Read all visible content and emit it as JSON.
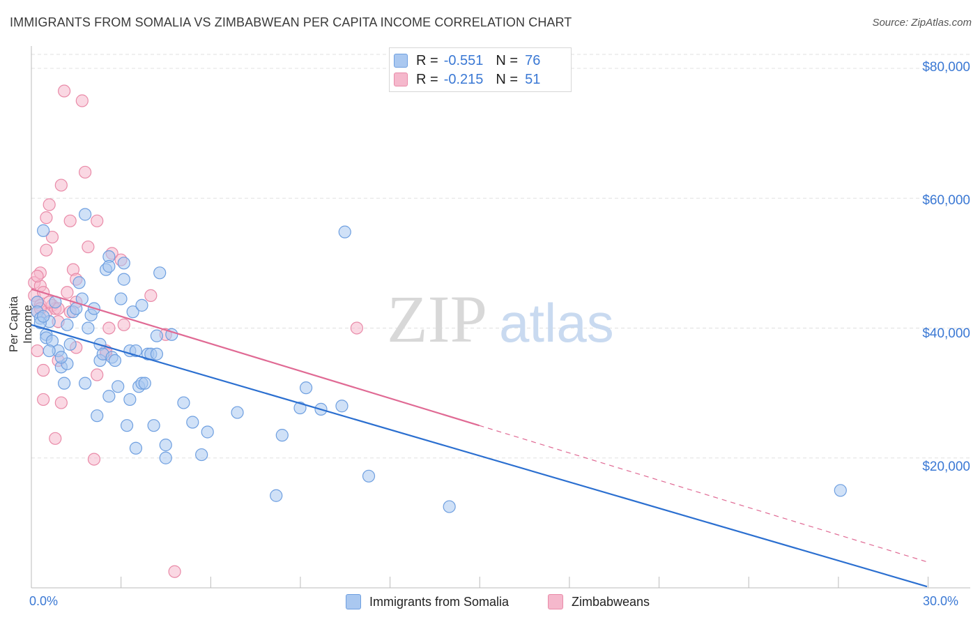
{
  "title": "IMMIGRANTS FROM SOMALIA VS ZIMBABWEAN PER CAPITA INCOME CORRELATION CHART",
  "source": "Source: ZipAtlas.com",
  "watermark": {
    "zip": "ZIP",
    "atlas": "atlas"
  },
  "legend": {
    "rows": [
      {
        "r_label": "R =",
        "r_value": "-0.551",
        "n_label": "N =",
        "n_value": "76"
      },
      {
        "r_label": "R =",
        "r_value": "-0.215",
        "n_label": "N =",
        "n_value": "51"
      }
    ]
  },
  "colors": {
    "blue_fill": "#aac8f0",
    "blue_stroke": "#6e9fe0",
    "blue_line": "#2b6fd0",
    "pink_fill": "#f5b8cc",
    "pink_stroke": "#e98aa8",
    "pink_line": "#e06a94",
    "grid": "#e0e0e0",
    "axis_text": "#3a78d4"
  },
  "chart_data": {
    "type": "scatter",
    "title": "IMMIGRANTS FROM SOMALIA VS ZIMBABWEAN PER CAPITA INCOME CORRELATION CHART",
    "xlabel": "",
    "ylabel": "Per Capita Income",
    "xlim": [
      0,
      30
    ],
    "ylim": [
      0,
      83000
    ],
    "x_tick_labels": [
      "0.0%",
      "30.0%"
    ],
    "y_ticks": [
      20000,
      40000,
      60000,
      80000
    ],
    "y_tick_labels": [
      "$20,000",
      "$40,000",
      "$60,000",
      "$80,000"
    ],
    "legend_position": "top-center",
    "series": [
      {
        "name": "Immigrants from Somalia",
        "r": -0.551,
        "n": 76,
        "trend": {
          "x0": 0,
          "y0": 40500,
          "x1": 30,
          "y1": 200
        },
        "points": [
          [
            0.2,
            44000
          ],
          [
            0.2,
            42500
          ],
          [
            0.3,
            41500
          ],
          [
            0.4,
            55000
          ],
          [
            0.5,
            39000
          ],
          [
            0.5,
            38500
          ],
          [
            0.6,
            41000
          ],
          [
            0.7,
            38000
          ],
          [
            0.8,
            44000
          ],
          [
            0.9,
            36500
          ],
          [
            1.0,
            34000
          ],
          [
            1.1,
            31500
          ],
          [
            1.2,
            34500
          ],
          [
            1.2,
            40500
          ],
          [
            1.3,
            37500
          ],
          [
            1.4,
            42500
          ],
          [
            1.5,
            43000
          ],
          [
            1.6,
            47000
          ],
          [
            1.7,
            44500
          ],
          [
            1.8,
            31500
          ],
          [
            1.8,
            57500
          ],
          [
            1.9,
            40000
          ],
          [
            2.0,
            42000
          ],
          [
            2.1,
            43000
          ],
          [
            2.2,
            26500
          ],
          [
            2.3,
            35000
          ],
          [
            2.3,
            37500
          ],
          [
            2.4,
            36000
          ],
          [
            2.5,
            49000
          ],
          [
            2.6,
            51000
          ],
          [
            2.6,
            49500
          ],
          [
            2.6,
            29500
          ],
          [
            2.7,
            35500
          ],
          [
            2.8,
            35000
          ],
          [
            2.9,
            31000
          ],
          [
            3.0,
            44500
          ],
          [
            3.1,
            50000
          ],
          [
            3.1,
            47500
          ],
          [
            3.2,
            25000
          ],
          [
            3.3,
            36500
          ],
          [
            3.3,
            29000
          ],
          [
            3.4,
            42500
          ],
          [
            3.5,
            36500
          ],
          [
            3.5,
            21500
          ],
          [
            3.6,
            31000
          ],
          [
            3.7,
            31500
          ],
          [
            3.7,
            43500
          ],
          [
            3.8,
            31500
          ],
          [
            3.9,
            36000
          ],
          [
            4.0,
            36000
          ],
          [
            4.1,
            25000
          ],
          [
            4.2,
            36000
          ],
          [
            4.2,
            38800
          ],
          [
            4.3,
            48500
          ],
          [
            4.5,
            22000
          ],
          [
            4.5,
            20000
          ],
          [
            4.7,
            39000
          ],
          [
            5.1,
            28500
          ],
          [
            5.4,
            25500
          ],
          [
            5.7,
            20500
          ],
          [
            5.9,
            24000
          ],
          [
            6.9,
            27000
          ],
          [
            8.2,
            14200
          ],
          [
            8.4,
            23500
          ],
          [
            9.0,
            27700
          ],
          [
            9.2,
            30800
          ],
          [
            9.7,
            27500
          ],
          [
            10.4,
            28000
          ],
          [
            10.5,
            54800
          ],
          [
            11.3,
            17200
          ],
          [
            14.0,
            12500
          ],
          [
            27.1,
            15000
          ],
          [
            0.3,
            40800
          ],
          [
            0.6,
            36500
          ],
          [
            1.0,
            35500
          ],
          [
            0.4,
            41800
          ]
        ]
      },
      {
        "name": "Zimbabweans",
        "r": -0.215,
        "n": 51,
        "trend": {
          "x0": 0,
          "y0": 46000,
          "x1": 15,
          "y1": 25000,
          "dash_x1": 30,
          "dash_y1": 4000
        },
        "points": [
          [
            0.1,
            47000
          ],
          [
            0.1,
            45000
          ],
          [
            0.2,
            44000
          ],
          [
            0.2,
            42500
          ],
          [
            0.2,
            36500
          ],
          [
            0.3,
            48500
          ],
          [
            0.3,
            46500
          ],
          [
            0.3,
            43500
          ],
          [
            0.4,
            45500
          ],
          [
            0.4,
            33500
          ],
          [
            0.4,
            29000
          ],
          [
            0.5,
            57000
          ],
          [
            0.5,
            52000
          ],
          [
            0.5,
            42500
          ],
          [
            0.6,
            59000
          ],
          [
            0.7,
            54000
          ],
          [
            0.7,
            43500
          ],
          [
            0.8,
            43000
          ],
          [
            0.8,
            23000
          ],
          [
            0.9,
            41000
          ],
          [
            0.9,
            35000
          ],
          [
            1.0,
            62000
          ],
          [
            1.0,
            28500
          ],
          [
            1.1,
            76500
          ],
          [
            1.2,
            45500
          ],
          [
            1.3,
            42500
          ],
          [
            1.3,
            56500
          ],
          [
            1.4,
            49000
          ],
          [
            1.5,
            47500
          ],
          [
            1.5,
            37000
          ],
          [
            1.7,
            75000
          ],
          [
            1.8,
            64000
          ],
          [
            1.9,
            52500
          ],
          [
            2.1,
            19800
          ],
          [
            2.2,
            32800
          ],
          [
            2.2,
            56500
          ],
          [
            2.5,
            36000
          ],
          [
            2.5,
            36500
          ],
          [
            2.6,
            40000
          ],
          [
            2.7,
            51500
          ],
          [
            3.0,
            50500
          ],
          [
            3.1,
            40500
          ],
          [
            4.0,
            45000
          ],
          [
            4.5,
            39000
          ],
          [
            4.8,
            2500
          ],
          [
            10.9,
            40000
          ],
          [
            0.2,
            48000
          ],
          [
            0.6,
            44000
          ],
          [
            0.9,
            43000
          ],
          [
            1.5,
            44000
          ],
          [
            0.3,
            43000
          ]
        ]
      }
    ]
  },
  "bottom_legend": [
    "Immigrants from Somalia",
    "Zimbabweans"
  ]
}
